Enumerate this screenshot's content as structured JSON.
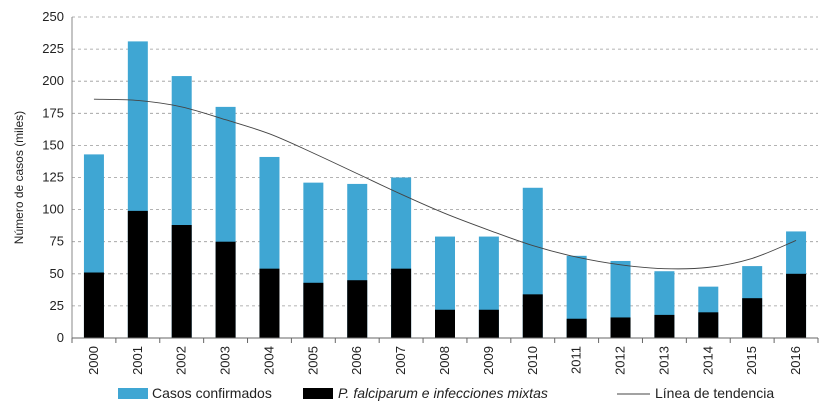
{
  "chart_data": {
    "type": "bar",
    "ylabel": "Número de casos (miles)",
    "xlabel": "",
    "ylim": [
      0,
      250
    ],
    "yticks": [
      0,
      25,
      50,
      75,
      100,
      125,
      150,
      175,
      200,
      225,
      250
    ],
    "grid": "horizontal dashed",
    "categories": [
      "2000",
      "2001",
      "2002",
      "2003",
      "2004",
      "2005",
      "2006",
      "2007",
      "2008",
      "2009",
      "2010",
      "2011",
      "2012",
      "2013",
      "2014",
      "2015",
      "2016"
    ],
    "series": [
      {
        "name": "Casos confirmados",
        "color": "#3FA6D3",
        "values": [
          143,
          231,
          204,
          180,
          141,
          121,
          120,
          125,
          79,
          79,
          117,
          64,
          60,
          52,
          40,
          56,
          83
        ]
      },
      {
        "name_prefix": "P. falciparum",
        "name_suffix": " e infecciones mixtas",
        "color": "#000000",
        "values": [
          51,
          99,
          88,
          75,
          54,
          43,
          45,
          54,
          22,
          22,
          34,
          15,
          16,
          18,
          20,
          31,
          50
        ]
      }
    ],
    "trend": {
      "name": "Línea de tendencia",
      "color": "#444444",
      "values": [
        186,
        185,
        180,
        170,
        159,
        144,
        128,
        112,
        97,
        84,
        72,
        63,
        57,
        54,
        55,
        62,
        76
      ]
    },
    "legend_position": "bottom"
  }
}
